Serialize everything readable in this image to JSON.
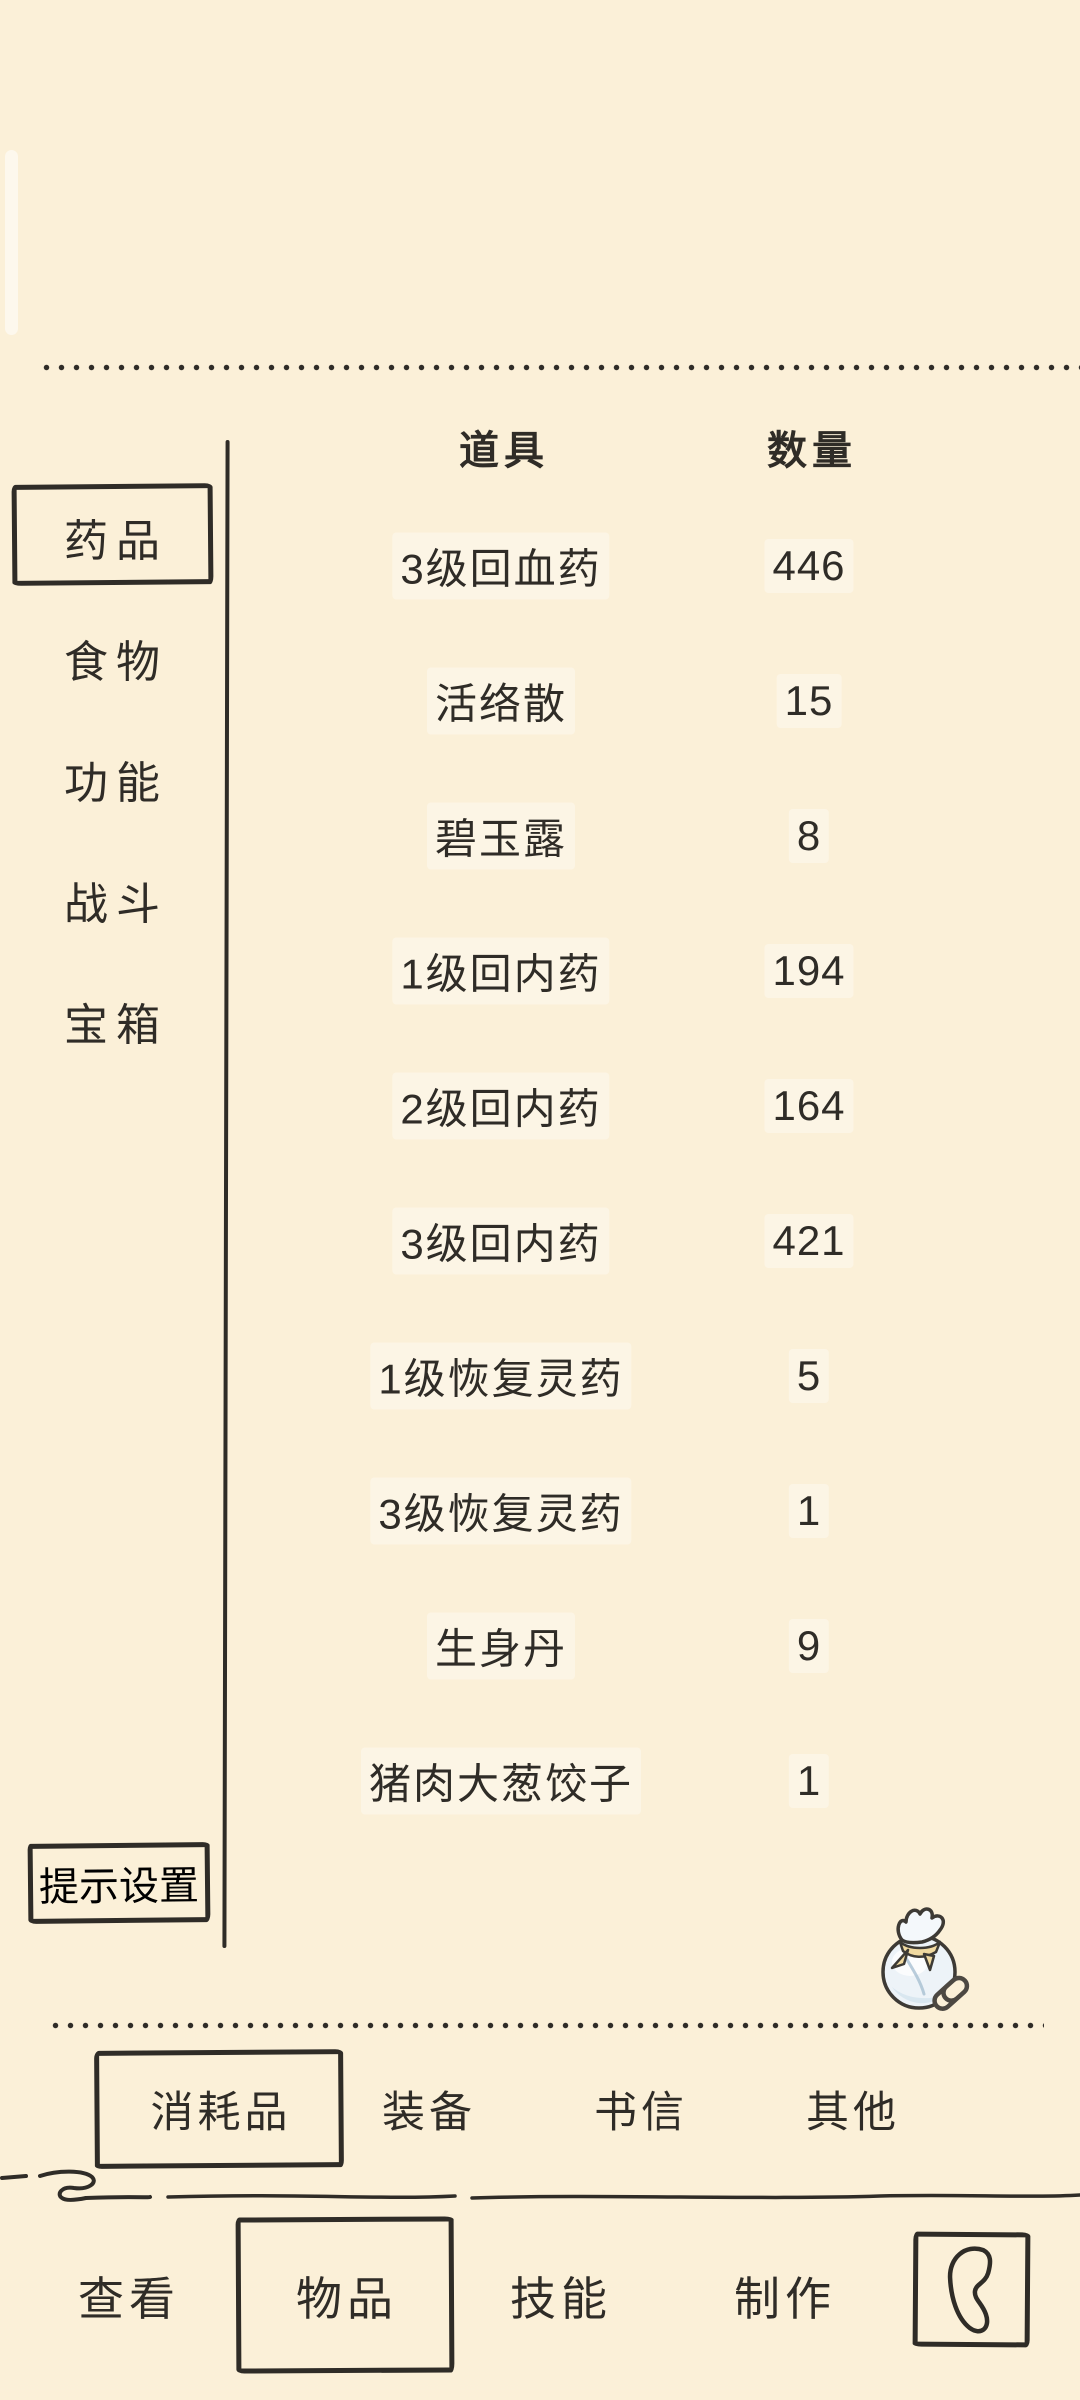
{
  "colors": {
    "background": "#fbf0d8",
    "ink": "#2f2c27",
    "bag_fill": "#edf3f8",
    "bag_shade": "#c9dcea",
    "ribbon": "#f0d9a0"
  },
  "table": {
    "item_header": "道具",
    "qty_header": "数量"
  },
  "sidebar": {
    "items": [
      {
        "label": "药品",
        "selected": true
      },
      {
        "label": "食物",
        "selected": false
      },
      {
        "label": "功能",
        "selected": false
      },
      {
        "label": "战斗",
        "selected": false
      },
      {
        "label": "宝箱",
        "selected": false
      }
    ]
  },
  "inventory": {
    "items": [
      {
        "name": "3级回血药",
        "qty": "446"
      },
      {
        "name": "活络散",
        "qty": "15"
      },
      {
        "name": "碧玉露",
        "qty": "8"
      },
      {
        "name": "1级回内药",
        "qty": "194"
      },
      {
        "name": "2级回内药",
        "qty": "164"
      },
      {
        "name": "3级回内药",
        "qty": "421"
      },
      {
        "name": "1级恢复灵药",
        "qty": "5"
      },
      {
        "name": "3级恢复灵药",
        "qty": "1"
      },
      {
        "name": "生身丹",
        "qty": "9"
      },
      {
        "name": "猪肉大葱饺子",
        "qty": "1"
      }
    ]
  },
  "tip_button": {
    "label": "提示设置"
  },
  "tabs": {
    "items": [
      {
        "label": "消耗品",
        "selected": true
      },
      {
        "label": "装备",
        "selected": false
      },
      {
        "label": "书信",
        "selected": false
      },
      {
        "label": "其他",
        "selected": false
      }
    ]
  },
  "bottom_nav": {
    "items": [
      {
        "label": "查看",
        "selected": false
      },
      {
        "label": "物品",
        "selected": true
      },
      {
        "label": "技能",
        "selected": false
      },
      {
        "label": "制作",
        "selected": false
      }
    ]
  }
}
